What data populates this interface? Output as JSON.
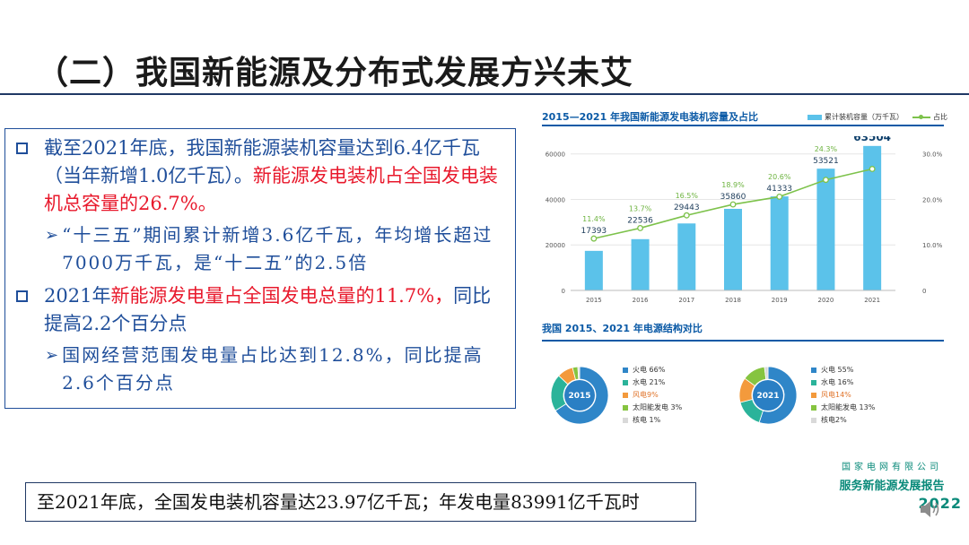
{
  "title": "（二）我国新能源及分布式发展方兴未艾",
  "text_box": {
    "b1_part1": "截至2021年底，我国新能源装机容量达到6.4亿千瓦（当年新增1.0亿千瓦）。",
    "b1_part2": "新能源发电装机占全国发电装机总容量的26.7%。",
    "sub1": "“十三五”期间累计新增3.6亿千瓦，年均增长超过7000万千瓦，是“十二五”的2.5倍",
    "b2_part1": "2021年",
    "b2_part2": "新能源发电量占全国发电总量的11.7%，",
    "b2_part3": "同比提高2.2个百分点",
    "sub2": "国网经营范围发电量占比达到12.8%，同比提高2.6个百分点"
  },
  "figure": {
    "chart_title": "2015—2021 年我国新能源发电装机容量及占比",
    "legend_bar": "累计装机容量（万千瓦）",
    "legend_line": "占比",
    "pie_title": "我国 2015、2021 年电源结构对比"
  },
  "chart_data": [
    {
      "type": "bar",
      "title": "2015—2021 年我国新能源发电装机容量及占比",
      "categories": [
        "2015",
        "2016",
        "2017",
        "2018",
        "2019",
        "2020",
        "2021"
      ],
      "series": [
        {
          "name": "累计装机容量（万千瓦）",
          "values": [
            17393,
            22536,
            29443,
            35860,
            41333,
            53521,
            63504
          ],
          "color": "#5bc2ea"
        },
        {
          "name": "占比",
          "values": [
            11.4,
            13.7,
            16.5,
            18.9,
            20.6,
            24.3,
            26.7
          ],
          "color": "#7dc24b",
          "type": "line",
          "axis": "right"
        }
      ],
      "value_labels": [
        "17393",
        "22536",
        "29443",
        "35860",
        "41333",
        "53521",
        "63504"
      ],
      "pct_labels": [
        "11.4%",
        "13.7%",
        "16.5%",
        "18.9%",
        "20.6%",
        "24.3%",
        "26.7%"
      ],
      "ylim": [
        0,
        60000
      ],
      "y_ticks": [
        "0",
        "20000",
        "40000",
        "60000"
      ],
      "y2lim": [
        0,
        30
      ],
      "y2_ticks": [
        "0",
        "10.0%",
        "20.0%",
        "30.0%"
      ]
    },
    {
      "type": "pie",
      "center_label": "2015",
      "labels": [
        "火电",
        "水电",
        "风电",
        "太阳能发电",
        "核电"
      ],
      "legend_texts": [
        "火电 66%",
        "水电 21%",
        "风电9%",
        "太阳能发电 3%",
        "核电 1%"
      ],
      "values": [
        66,
        21,
        9,
        3,
        1
      ],
      "colors": [
        "#2f86c8",
        "#2bb39a",
        "#f39a3c",
        "#86c440",
        "#d9d9d9"
      ]
    },
    {
      "type": "pie",
      "center_label": "2021",
      "labels": [
        "火电",
        "水电",
        "风电",
        "太阳能发电",
        "核电"
      ],
      "legend_texts": [
        "火电 55%",
        "水电 16%",
        "风电14%",
        "太阳能发电 13%",
        "核电2%"
      ],
      "values": [
        55,
        16,
        14,
        13,
        2
      ],
      "colors": [
        "#2f86c8",
        "#2bb39a",
        "#f39a3c",
        "#86c440",
        "#d9d9d9"
      ]
    }
  ],
  "brand": {
    "line1": "国家电网有限公司",
    "line2": "服务新能源发展报告",
    "line3": "2022"
  },
  "footer": "至2021年底，全国发电装机容量达23.97亿千瓦；年发电量83991亿千瓦时"
}
